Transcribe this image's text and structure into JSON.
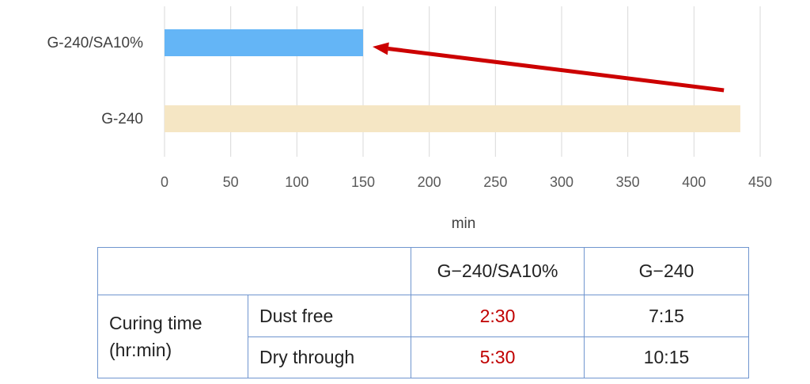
{
  "chart_data": {
    "type": "bar",
    "orientation": "horizontal",
    "categories": [
      "G-240/SA10%",
      "G-240"
    ],
    "values": [
      150,
      435
    ],
    "colors": [
      "#64b5f6",
      "#f5e6c4"
    ],
    "xlabel": "min",
    "xlim": [
      0,
      450
    ],
    "xticks": [
      0,
      50,
      100,
      150,
      200,
      250,
      300,
      350,
      400,
      450
    ],
    "grid": "vertical",
    "annotation": {
      "type": "arrow",
      "color": "#cc0000",
      "from_x": 425,
      "to_x": 150,
      "target": "G-240/SA10%"
    }
  },
  "table": {
    "header": [
      "",
      "G−240/SA10%",
      "G−240"
    ],
    "row_group_label_line1": "Curing time",
    "row_group_label_line2": "(hr:min)",
    "rows": [
      {
        "label": "Dust free",
        "sa10": "2:30",
        "g240": "7:15"
      },
      {
        "label": "Dry through",
        "sa10": "5:30",
        "g240": "10:15"
      }
    ],
    "highlight_color": "#c00000"
  }
}
